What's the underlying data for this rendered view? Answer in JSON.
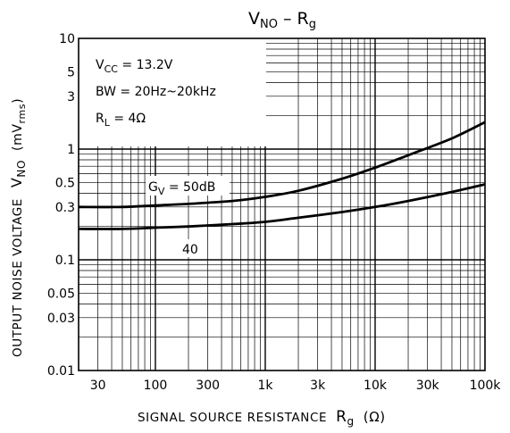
{
  "chart_data": {
    "type": "line",
    "title": {
      "main": "V",
      "main_sub": "NO",
      "sep": " – ",
      "second": "R",
      "second_sub": "g"
    },
    "xlabel": {
      "text": "SIGNAL SOURCE RESISTANCE",
      "symbol": "R",
      "symbol_sub": "g",
      "unit": "(Ω)"
    },
    "ylabel": {
      "text": "OUTPUT NOISE VOLTAGE",
      "symbol": "V",
      "symbol_sub": "NO",
      "unit_open": "(mV",
      "unit_sub": "rms",
      "unit_close": ")"
    },
    "x_scale": "log",
    "y_scale": "log",
    "xlim": [
      20,
      100000
    ],
    "ylim": [
      0.01,
      10
    ],
    "x_ticks": [
      {
        "value": 30,
        "label": "30"
      },
      {
        "value": 100,
        "label": "100"
      },
      {
        "value": 300,
        "label": "300"
      },
      {
        "value": 1000,
        "label": "1k"
      },
      {
        "value": 3000,
        "label": "3k"
      },
      {
        "value": 10000,
        "label": "10k"
      },
      {
        "value": 30000,
        "label": "30k"
      },
      {
        "value": 100000,
        "label": "100k"
      }
    ],
    "y_ticks": [
      {
        "value": 10,
        "label": "10"
      },
      {
        "value": 5,
        "label": "5"
      },
      {
        "value": 3,
        "label": "3"
      },
      {
        "value": 1,
        "label": "1"
      },
      {
        "value": 0.5,
        "label": "0.5"
      },
      {
        "value": 0.3,
        "label": "0.3"
      },
      {
        "value": 0.1,
        "label": "0.1"
      },
      {
        "value": 0.05,
        "label": "0.05"
      },
      {
        "value": 0.03,
        "label": "0.03"
      },
      {
        "value": 0.01,
        "label": "0.01"
      }
    ],
    "grid": true,
    "conditions": [
      {
        "pre": "V",
        "sub": "CC",
        "post": " = 13.2V"
      },
      {
        "pre": "BW = 20Hz~20kHz",
        "sub": "",
        "post": ""
      },
      {
        "pre": "R",
        "sub": "L",
        "post": " = 4Ω"
      }
    ],
    "series": [
      {
        "label_pre": "G",
        "label_sub": "V",
        "label_post": " = 50dB",
        "x": [
          20,
          50,
          100,
          200,
          500,
          1000,
          2000,
          5000,
          10000,
          20000,
          50000,
          100000
        ],
        "y": [
          0.3,
          0.3,
          0.31,
          0.32,
          0.34,
          0.37,
          0.42,
          0.54,
          0.68,
          0.88,
          1.25,
          1.75
        ]
      },
      {
        "label_pre": "40",
        "label_sub": "",
        "label_post": "",
        "x": [
          20,
          50,
          100,
          200,
          500,
          1000,
          2000,
          5000,
          10000,
          20000,
          50000,
          100000
        ],
        "y": [
          0.19,
          0.19,
          0.195,
          0.2,
          0.21,
          0.22,
          0.24,
          0.27,
          0.3,
          0.34,
          0.41,
          0.48
        ]
      }
    ]
  }
}
